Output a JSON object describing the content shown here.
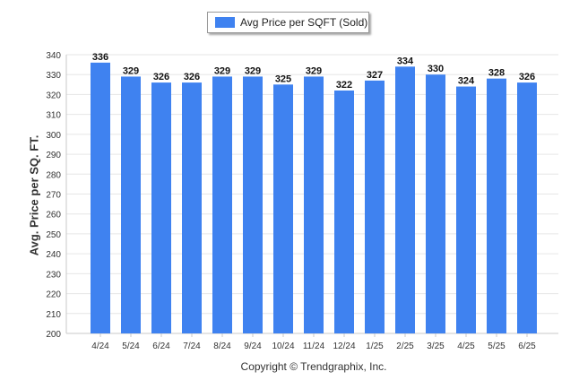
{
  "legend": {
    "label": "Avg Price per SQFT (Sold)",
    "color": "#3f82f0"
  },
  "footer": {
    "copyright": "Copyright © Trendgraphix, Inc."
  },
  "chart_data": {
    "type": "bar",
    "title": "",
    "xlabel": "",
    "ylabel": "Avg. Price per SQ. FT.",
    "ylim": [
      200,
      340
    ],
    "yticks": [
      200,
      210,
      220,
      230,
      240,
      250,
      260,
      270,
      280,
      290,
      300,
      310,
      320,
      330,
      340
    ],
    "grid": true,
    "legend_position": "top-center",
    "categories": [
      "4/24",
      "5/24",
      "6/24",
      "7/24",
      "8/24",
      "9/24",
      "10/24",
      "11/24",
      "12/24",
      "1/25",
      "2/25",
      "3/25",
      "4/25",
      "5/25",
      "6/25"
    ],
    "series": [
      {
        "name": "Avg Price per SQFT (Sold)",
        "color": "#3f82f0",
        "values": [
          336,
          329,
          326,
          326,
          329,
          329,
          325,
          329,
          322,
          327,
          334,
          330,
          324,
          328,
          326
        ]
      }
    ]
  }
}
